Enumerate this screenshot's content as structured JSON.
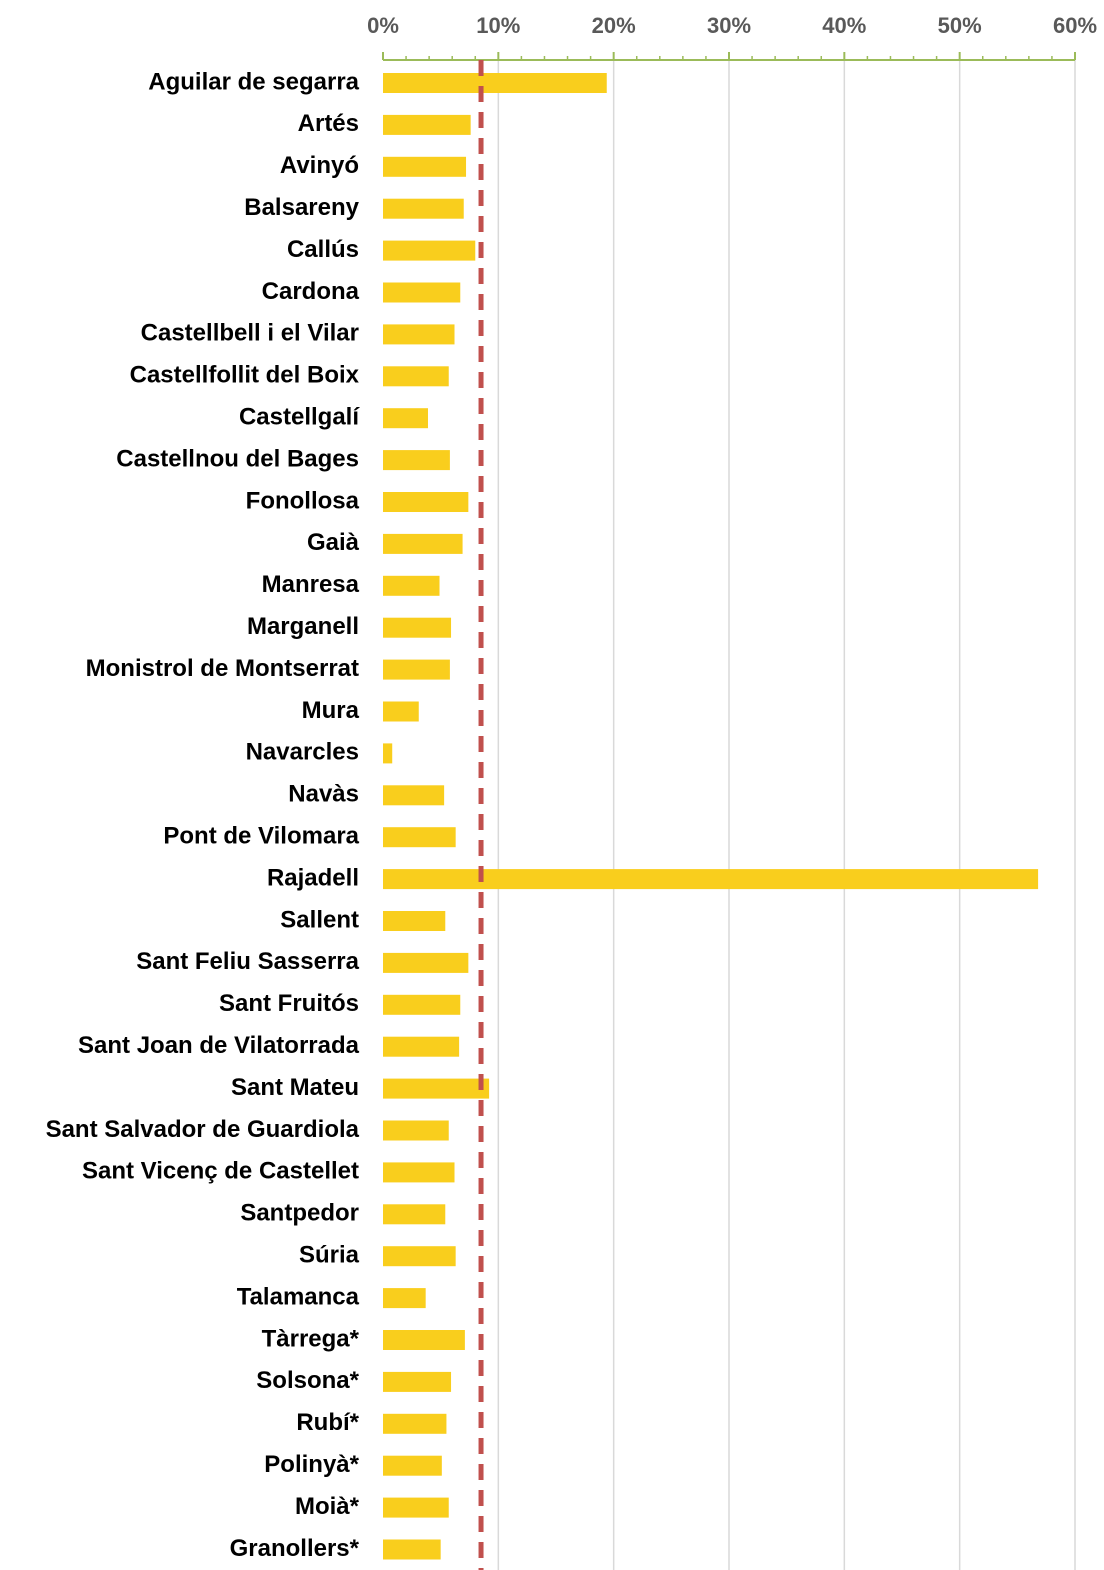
{
  "chart_data": {
    "type": "barh",
    "categories": [
      "Aguilar de segarra",
      "Artés",
      "Avinyó",
      "Balsareny",
      "Callús",
      "Cardona",
      "Castellbell i el Vilar",
      "Castellfollit del Boix",
      "Castellgalí",
      "Castellnou del Bages",
      "Fonollosa",
      "Gaià",
      "Manresa",
      "Marganell",
      "Monistrol de Montserrat",
      "Mura",
      "Navarcles",
      "Navàs",
      "Pont de Vilomara",
      "Rajadell",
      "Sallent",
      "Sant Feliu Sasserra",
      "Sant Fruitós",
      "Sant Joan de Vilatorrada",
      "Sant Mateu",
      "Sant Salvador de Guardiola",
      "Sant Vicenç de Castellet",
      "Santpedor",
      "Súria",
      "Talamanca",
      "Tàrrega*",
      "Solsona*",
      "Rubí*",
      "Polinyà*",
      "Moià*",
      "Granollers*"
    ],
    "values": [
      19.4,
      7.6,
      7.2,
      7.0,
      8.0,
      6.7,
      6.2,
      5.7,
      3.9,
      5.8,
      7.4,
      6.9,
      4.9,
      5.9,
      5.8,
      3.1,
      0.8,
      5.3,
      6.3,
      56.8,
      5.4,
      7.4,
      6.7,
      6.6,
      9.2,
      5.7,
      6.2,
      5.4,
      6.3,
      3.7,
      7.1,
      5.9,
      5.5,
      5.1,
      5.7,
      5.0
    ],
    "color": "#f9ce1d",
    "xlim": [
      0,
      60
    ],
    "xticks": [
      {
        "value": 0,
        "label": "0%"
      },
      {
        "value": 10,
        "label": "10%"
      },
      {
        "value": 20,
        "label": "20%"
      },
      {
        "value": 30,
        "label": "30%"
      },
      {
        "value": 40,
        "label": "40%"
      },
      {
        "value": 50,
        "label": "50%"
      },
      {
        "value": 60,
        "label": "60%"
      }
    ],
    "xminorticks": [
      2,
      4,
      6,
      8,
      12,
      14,
      16,
      18,
      22,
      24,
      26,
      28,
      32,
      34,
      36,
      38,
      42,
      44,
      46,
      48,
      52,
      54,
      56,
      58
    ],
    "axis_color": "#9bbb59",
    "grid": true,
    "reference_line": {
      "value": 8.5,
      "color": "#c0504d"
    }
  }
}
